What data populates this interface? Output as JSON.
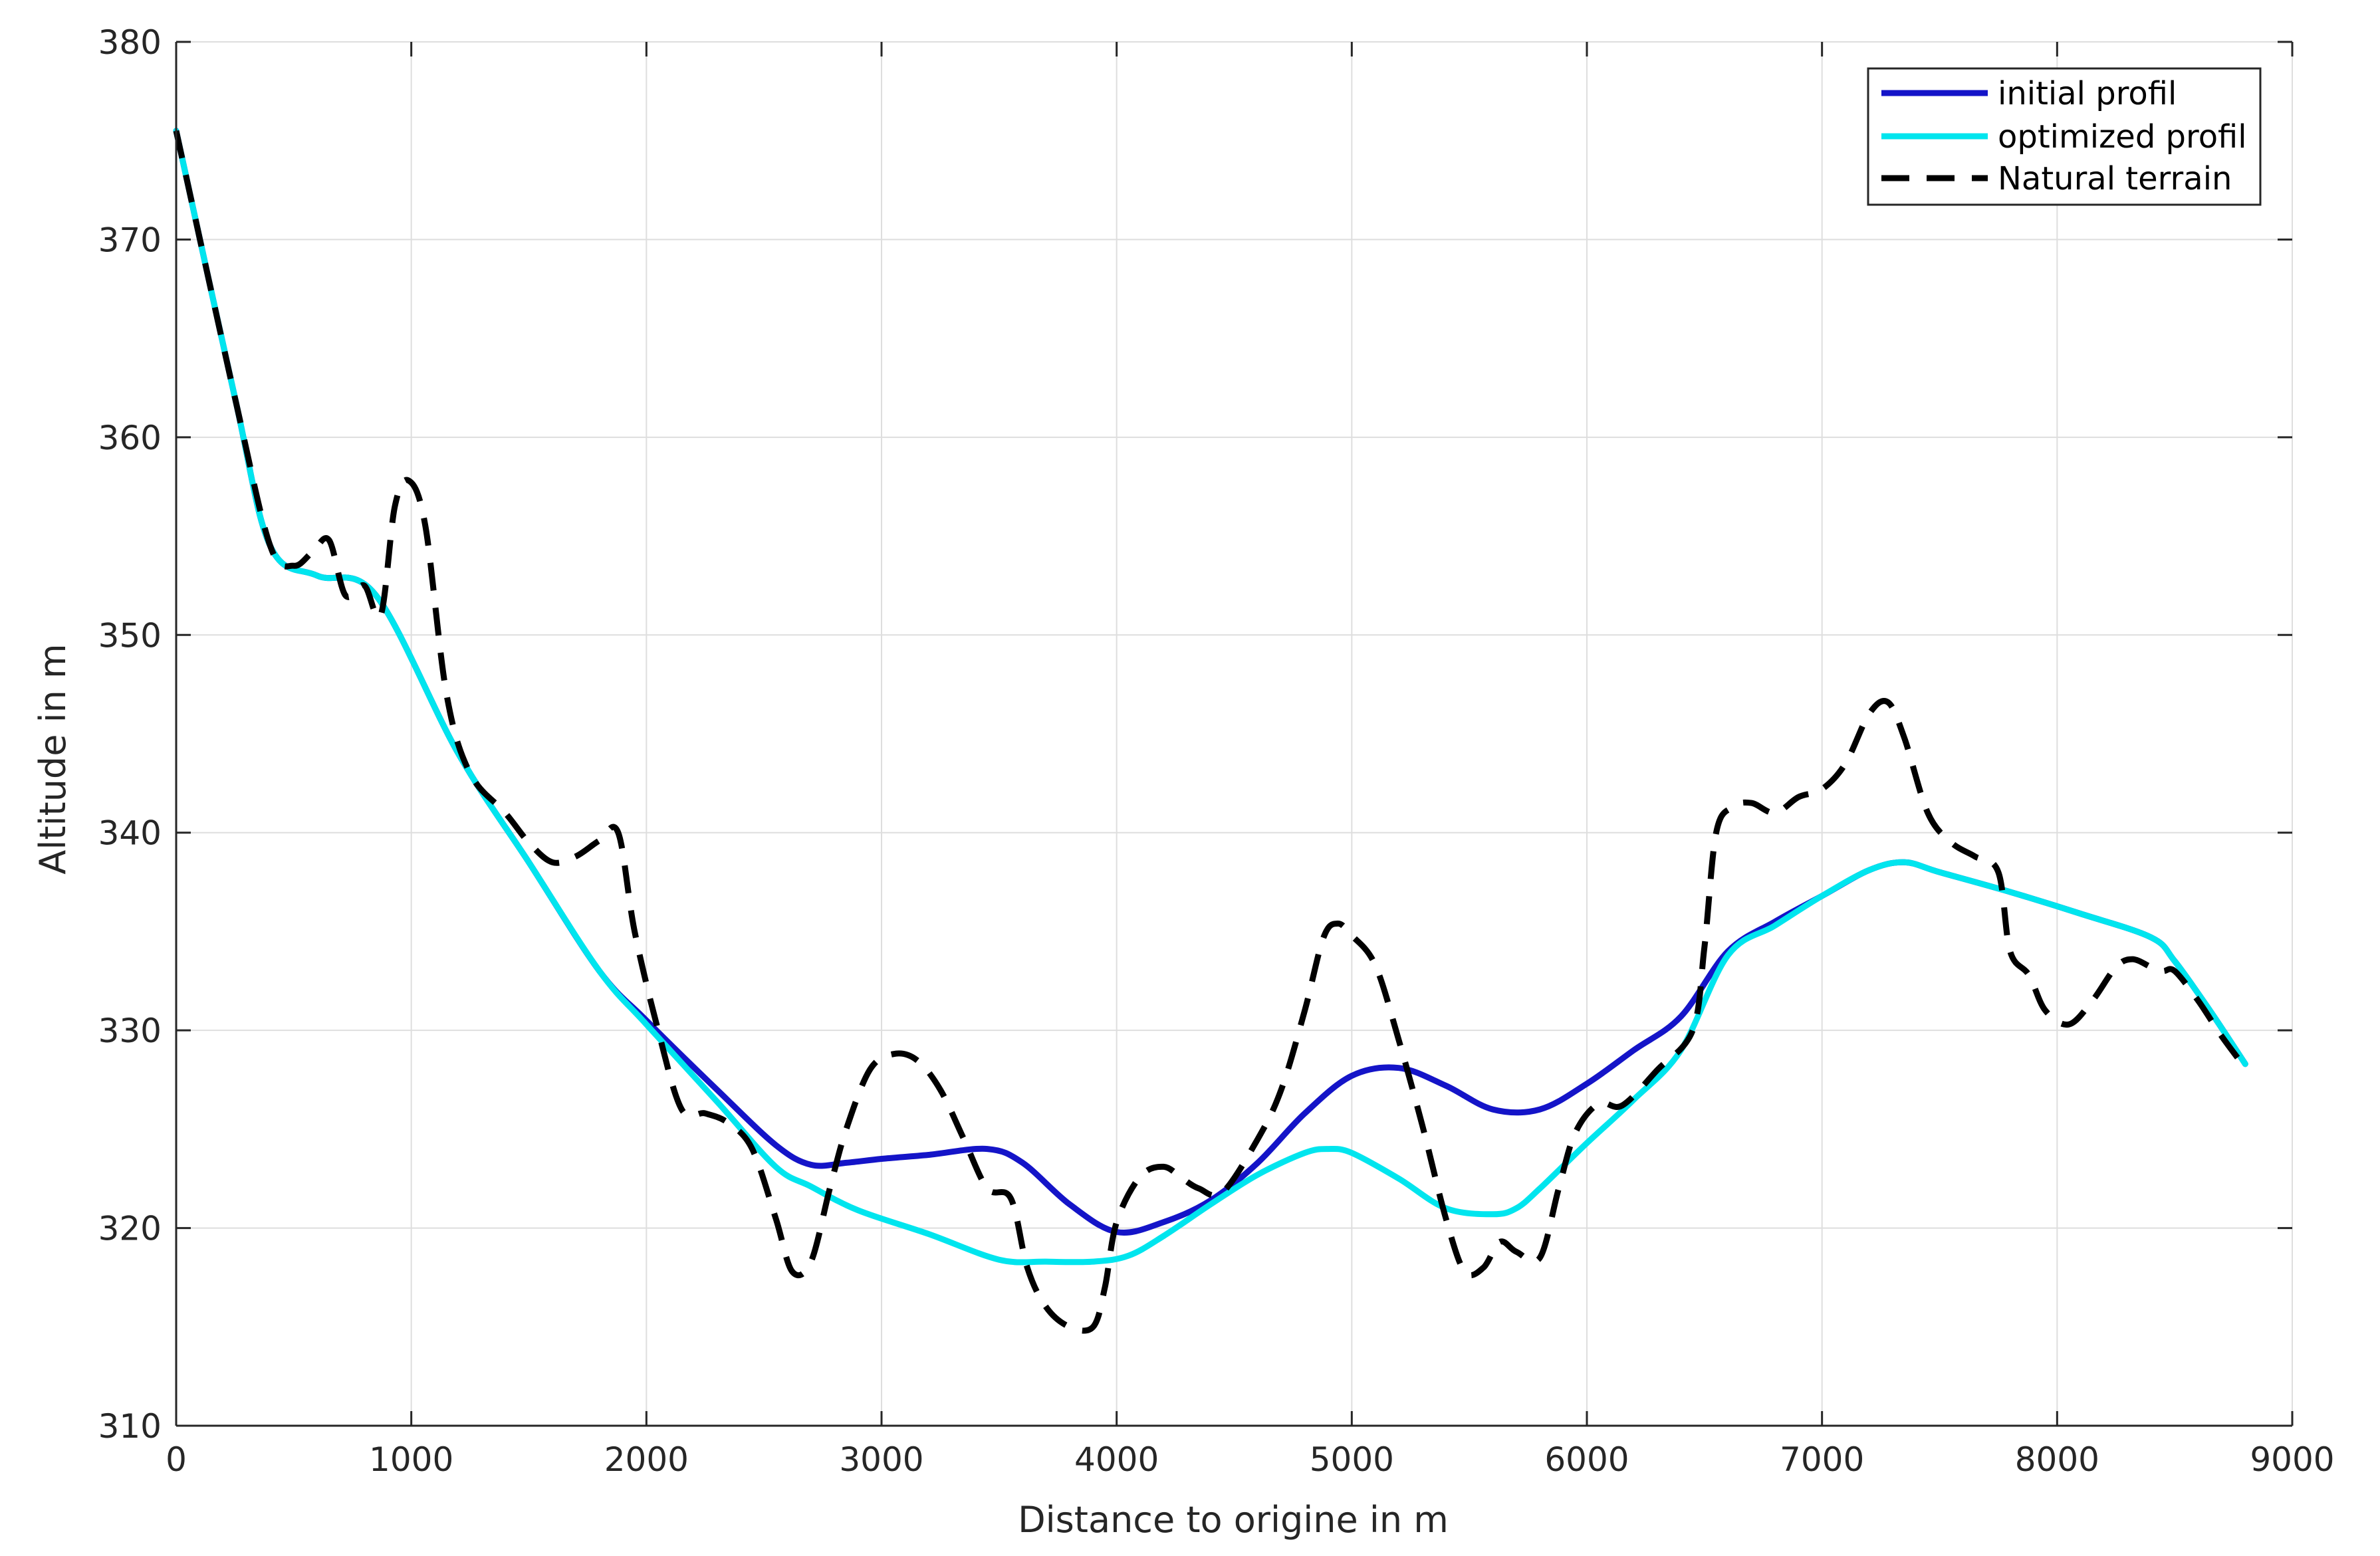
{
  "chart_data": {
    "type": "line",
    "title": "",
    "xlabel": "Distance to origine in m",
    "ylabel": "Altitude in m",
    "xlim": [
      0,
      9000
    ],
    "ylim": [
      310,
      380
    ],
    "x_ticks": [
      0,
      1000,
      2000,
      3000,
      4000,
      5000,
      6000,
      7000,
      8000,
      9000
    ],
    "y_ticks": [
      310,
      320,
      330,
      340,
      350,
      360,
      370,
      380
    ],
    "x_tick_labels": [
      "0",
      "1000",
      "2000",
      "3000",
      "4000",
      "5000",
      "6000",
      "7000",
      "8000",
      "9000"
    ],
    "y_tick_labels": [
      "310",
      "320",
      "330",
      "340",
      "350",
      "360",
      "370",
      "380"
    ],
    "grid": true,
    "legend_position": "top-right",
    "colors": {
      "initial": "#1414c8",
      "optimized": "#00e5ee",
      "terrain": "#000000",
      "grid": "#dedede",
      "axis": "#262626"
    },
    "series": [
      {
        "name": "initial profil",
        "style": "solid",
        "x": [
          0,
          250,
          400,
          600,
          850,
          1200,
          1500,
          1800,
          2000,
          2300,
          2550,
          2700,
          2850,
          3000,
          3200,
          3450,
          3600,
          3800,
          4000,
          4200,
          4400,
          4600,
          4800,
          5000,
          5200,
          5400,
          5600,
          5800,
          6000,
          6200,
          6400,
          6600,
          6800,
          7000,
          7200,
          7350,
          7500,
          7800,
          8100,
          8400,
          8500,
          8650,
          8800
        ],
        "values": [
          375.5,
          362,
          354.5,
          353,
          352,
          344,
          338.5,
          333,
          330.5,
          327,
          324.2,
          323.2,
          323.3,
          323.5,
          323.7,
          324,
          323.3,
          321.2,
          319.8,
          320.3,
          321.4,
          323.3,
          325.8,
          327.7,
          328.1,
          327.2,
          326,
          326,
          327.3,
          329,
          330.7,
          334,
          335.5,
          336.8,
          338.1,
          338.5,
          338,
          337,
          335.9,
          334.7,
          333.5,
          331,
          328.3
        ]
      },
      {
        "name": "optimized profil",
        "style": "solid",
        "x": [
          0,
          250,
          400,
          600,
          850,
          1200,
          1500,
          1800,
          2000,
          2300,
          2550,
          2700,
          2900,
          3200,
          3500,
          3700,
          3900,
          4050,
          4200,
          4400,
          4600,
          4800,
          4900,
          5000,
          5200,
          5400,
          5600,
          5700,
          5800,
          6000,
          6200,
          6400,
          6600,
          6800,
          7000,
          7200,
          7350,
          7500,
          7800,
          8100,
          8400,
          8500,
          8650,
          8800
        ],
        "values": [
          375.5,
          362,
          354.5,
          353,
          352,
          344,
          338.5,
          333,
          330.3,
          326.4,
          323.1,
          322.1,
          320.9,
          319.7,
          318.4,
          318.3,
          318.3,
          318.6,
          319.6,
          321.2,
          322.7,
          323.8,
          324,
          323.8,
          322.5,
          321,
          320.7,
          321,
          322,
          324.3,
          326.5,
          329,
          333.8,
          335.3,
          336.8,
          338.1,
          338.5,
          338,
          337,
          335.9,
          334.7,
          333.5,
          331,
          328.3
        ]
      },
      {
        "name": "Natural terrain",
        "style": "dashed",
        "x": [
          0,
          250,
          400,
          500,
          580,
          650,
          720,
          800,
          870,
          930,
          990,
          1060,
          1150,
          1250,
          1400,
          1500,
          1600,
          1700,
          1800,
          1880,
          1950,
          2050,
          2150,
          2250,
          2350,
          2450,
          2550,
          2620,
          2700,
          2780,
          2850,
          2950,
          3050,
          3150,
          3250,
          3350,
          3450,
          3550,
          3620,
          3700,
          3800,
          3900,
          3950,
          4000,
          4100,
          4200,
          4280,
          4350,
          4450,
          4600,
          4700,
          4800,
          4880,
          4940,
          5000,
          5100,
          5200,
          5300,
          5400,
          5480,
          5560,
          5630,
          5700,
          5800,
          5880,
          5950,
          6050,
          6150,
          6300,
          6450,
          6500,
          6550,
          6620,
          6700,
          6800,
          6900,
          7000,
          7100,
          7200,
          7280,
          7350,
          7450,
          7550,
          7650,
          7750,
          7800,
          7880,
          7950,
          8050,
          8150,
          8250,
          8320,
          8400,
          8450,
          8500,
          8600,
          8700,
          8800
        ],
        "values": [
          375.5,
          362,
          354.5,
          353.5,
          354.2,
          354.8,
          352,
          352.5,
          351,
          356.5,
          357.8,
          355.5,
          347,
          343,
          341,
          339.5,
          338.5,
          338.8,
          339.6,
          340,
          335,
          330,
          326,
          325.8,
          325.3,
          324,
          320.5,
          317.8,
          318.3,
          322,
          325,
          328,
          328.8,
          328.5,
          327,
          324.5,
          322,
          321.5,
          318,
          316,
          315,
          315,
          317,
          320.3,
          322.6,
          323.1,
          322.5,
          322,
          321.8,
          324.5,
          327,
          331,
          334.7,
          335.4,
          334.8,
          333.3,
          329.5,
          325.2,
          320.5,
          317.8,
          318,
          319.3,
          318.8,
          318.5,
          322,
          324.8,
          326.3,
          326.2,
          328,
          330,
          334.2,
          340,
          341.3,
          341.5,
          341,
          341.8,
          342.2,
          343.5,
          346,
          346.6,
          344.8,
          341,
          339.5,
          338.8,
          338,
          334,
          332.8,
          331,
          330.3,
          331.5,
          333.2,
          333.6,
          333.2,
          333,
          333,
          331.5,
          329.7,
          328.1
        ]
      }
    ]
  }
}
